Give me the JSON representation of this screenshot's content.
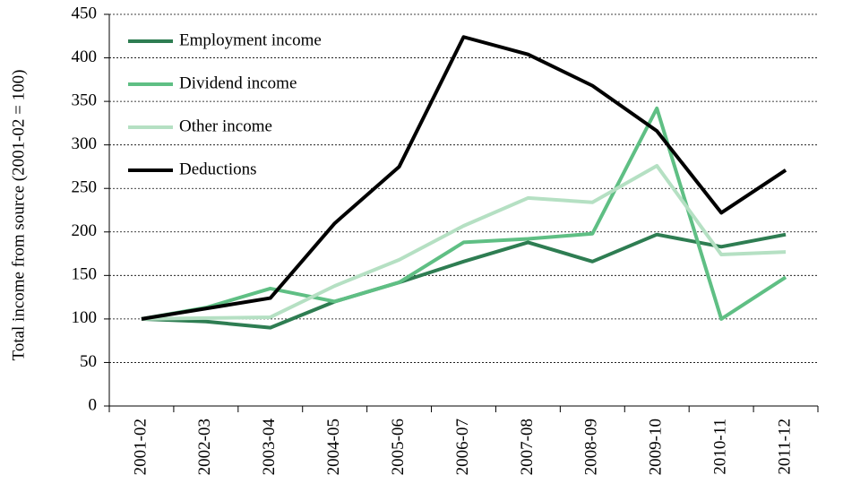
{
  "chart_data": {
    "type": "line",
    "y_label": "Total income from source (2001-02 = 100)",
    "categories": [
      "2001-02",
      "2002-03",
      "2003-04",
      "2004-05",
      "2005-06",
      "2006-07",
      "2007-08",
      "2008-09",
      "2009-10",
      "2010-11",
      "2011-12"
    ],
    "series": [
      {
        "name": "Employment income",
        "color": "#2e7d52",
        "values": [
          100,
          97,
          90,
          120,
          142,
          166,
          188,
          166,
          197,
          183,
          197
        ]
      },
      {
        "name": "Dividend income",
        "color": "#5fbf84",
        "values": [
          100,
          113,
          135,
          120,
          142,
          188,
          192,
          198,
          342,
          100,
          148
        ]
      },
      {
        "name": "Other income",
        "color": "#b5e0c3",
        "values": [
          100,
          101,
          102,
          138,
          168,
          207,
          239,
          234,
          276,
          174,
          177
        ]
      },
      {
        "name": "Deductions",
        "color": "#000000",
        "values": [
          100,
          112,
          124,
          210,
          275,
          424,
          404,
          368,
          316,
          222,
          271
        ]
      }
    ],
    "ylim": [
      0,
      450
    ],
    "yticks": [
      0,
      50,
      100,
      150,
      200,
      250,
      300,
      350,
      400,
      450
    ],
    "grid": true,
    "legend": "upper left"
  }
}
